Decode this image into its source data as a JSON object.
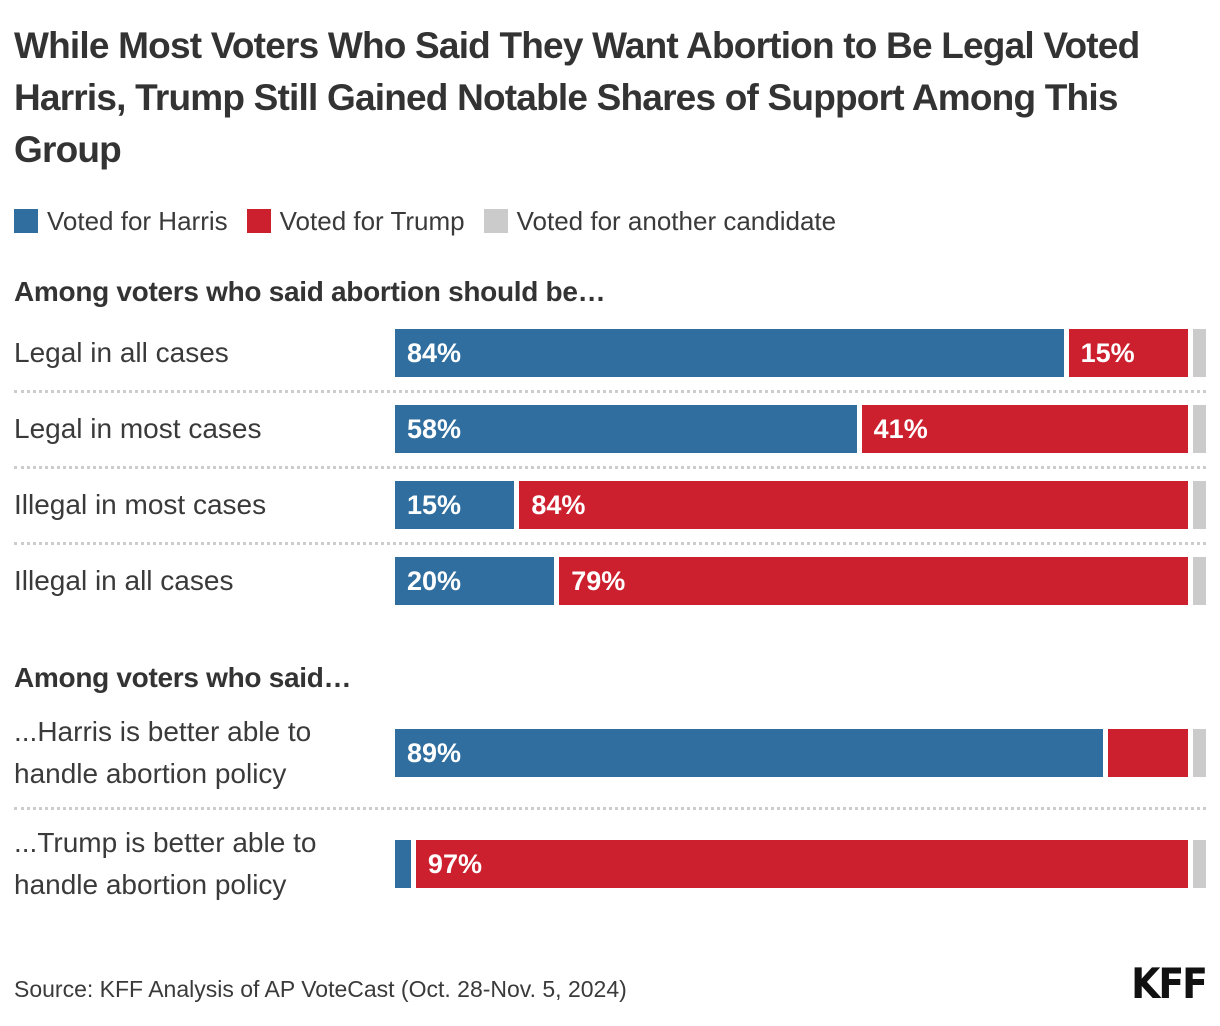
{
  "title": "While Most Voters Who Said They Want Abortion to Be Legal Voted Harris, Trump Still Gained Notable Shares of Support Among This Group",
  "colors": {
    "harris": "#2f6e9e",
    "trump": "#cd202e",
    "other": "#cbcbcb",
    "separator": "#cccccc",
    "text": "#333333"
  },
  "legend": [
    {
      "label": "Voted for Harris",
      "series": "harris"
    },
    {
      "label": "Voted for Trump",
      "series": "trump"
    },
    {
      "label": "Voted for another candidate",
      "series": "other"
    }
  ],
  "chart_data": {
    "type": "bar",
    "orientation": "horizontal",
    "stacked": true,
    "unit": "%",
    "xlim": [
      0,
      100
    ],
    "series_names": [
      "Voted for Harris",
      "Voted for Trump",
      "Voted for another candidate"
    ],
    "sections": [
      {
        "header": "Among voters who said abortion should be…",
        "rows": [
          {
            "label": "Legal in all cases",
            "harris": 84,
            "trump": 15,
            "other": 1,
            "harris_label": "84%",
            "trump_label": "15%",
            "other_label": ""
          },
          {
            "label": "Legal in most cases",
            "harris": 58,
            "trump": 41,
            "other": 1,
            "harris_label": "58%",
            "trump_label": "41%",
            "other_label": ""
          },
          {
            "label": "Illegal in most cases",
            "harris": 15,
            "trump": 84,
            "other": 1,
            "harris_label": "15%",
            "trump_label": "84%",
            "other_label": ""
          },
          {
            "label": "Illegal in all cases",
            "harris": 20,
            "trump": 79,
            "other": 1,
            "harris_label": "20%",
            "trump_label": "79%",
            "other_label": ""
          }
        ]
      },
      {
        "header": "Among voters who said…",
        "rows": [
          {
            "label": "...Harris is better able to handle abortion policy",
            "harris": 89,
            "trump": 10,
            "other": 1,
            "harris_label": "89%",
            "trump_label": "",
            "other_label": ""
          },
          {
            "label": "...Trump is better able to handle abortion policy",
            "harris": 2,
            "trump": 97,
            "other": 1,
            "harris_label": "",
            "trump_label": "97%",
            "other_label": ""
          }
        ]
      }
    ]
  },
  "footer": {
    "source": "Source: KFF Analysis of AP VoteCast (Oct. 28-Nov. 5, 2024)",
    "logo": "KFF"
  }
}
